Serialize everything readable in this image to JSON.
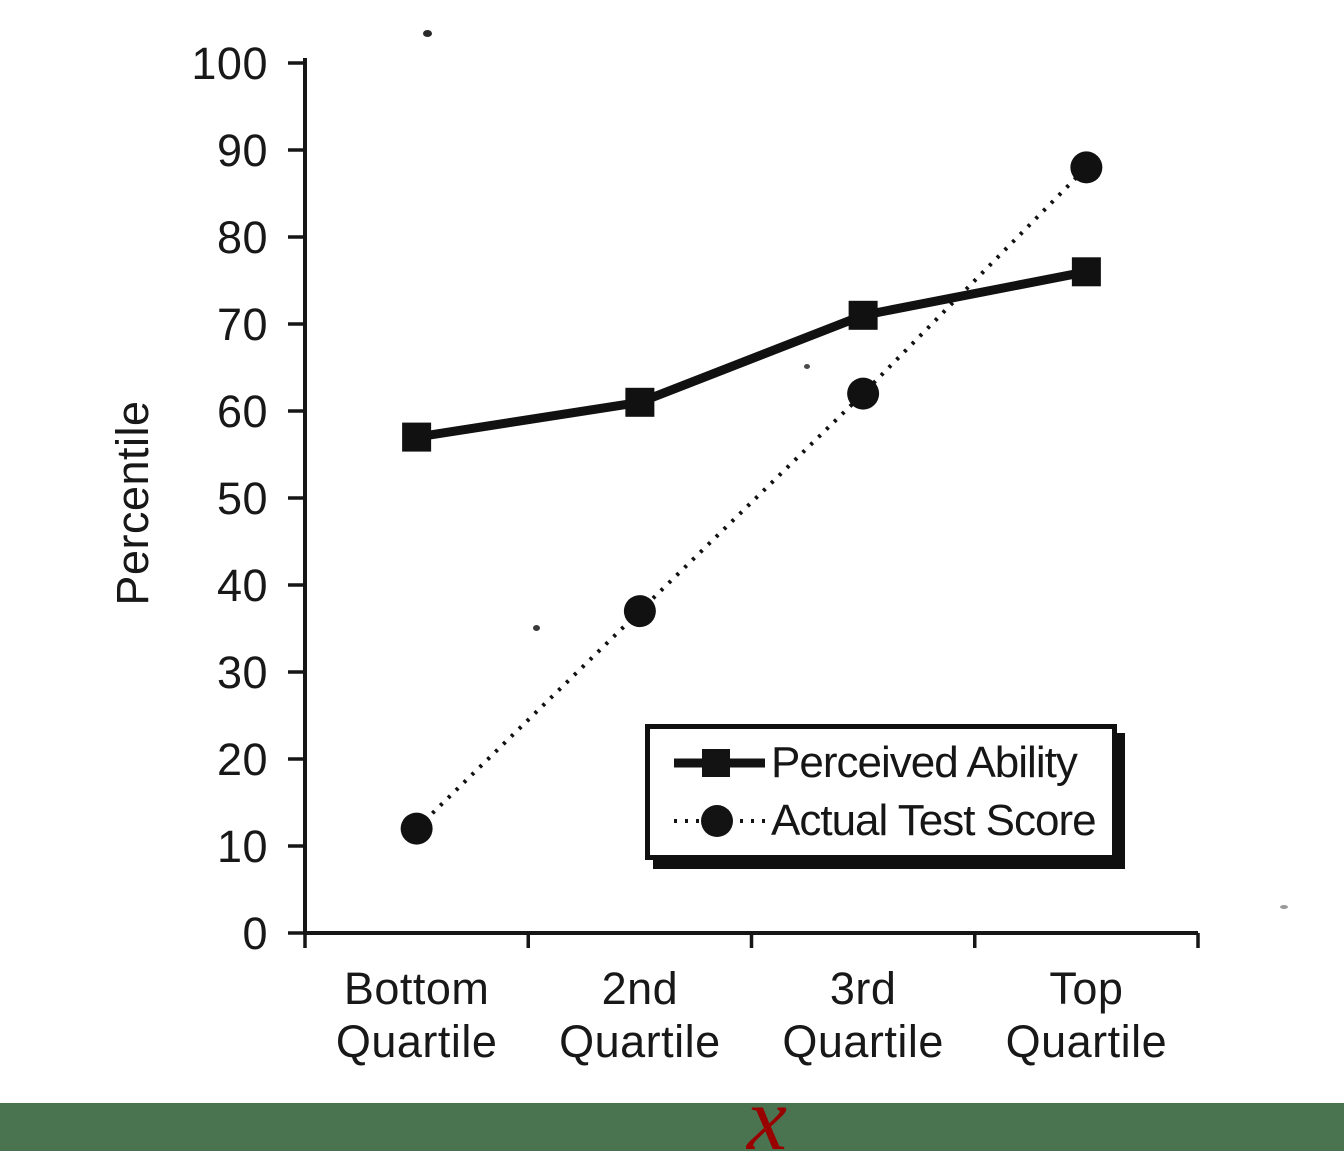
{
  "chart_data": {
    "type": "line",
    "title": "",
    "ylabel": "Percentile",
    "xlabel": "",
    "ylim": [
      0,
      100
    ],
    "yticks": [
      0,
      10,
      20,
      30,
      40,
      50,
      60,
      70,
      80,
      90,
      100
    ],
    "grid": false,
    "axis_color": "#161616",
    "categories": [
      "Bottom Quartile",
      "2nd Quartile",
      "3rd Quartile",
      "Top Quartile"
    ],
    "series": [
      {
        "name": "Perceived Ability",
        "values": [
          57,
          61,
          71,
          76
        ],
        "marker": "square",
        "line_style": "solid",
        "color": "#111111"
      },
      {
        "name": "Actual Test Score",
        "values": [
          12,
          37,
          62,
          88
        ],
        "marker": "circle",
        "line_style": "dotted",
        "color": "#111111"
      }
    ],
    "legend_position": "inside lower right"
  },
  "footer_band": {
    "color": "#4a7350",
    "cursor_char": "x",
    "cursor_color": "#990000"
  }
}
